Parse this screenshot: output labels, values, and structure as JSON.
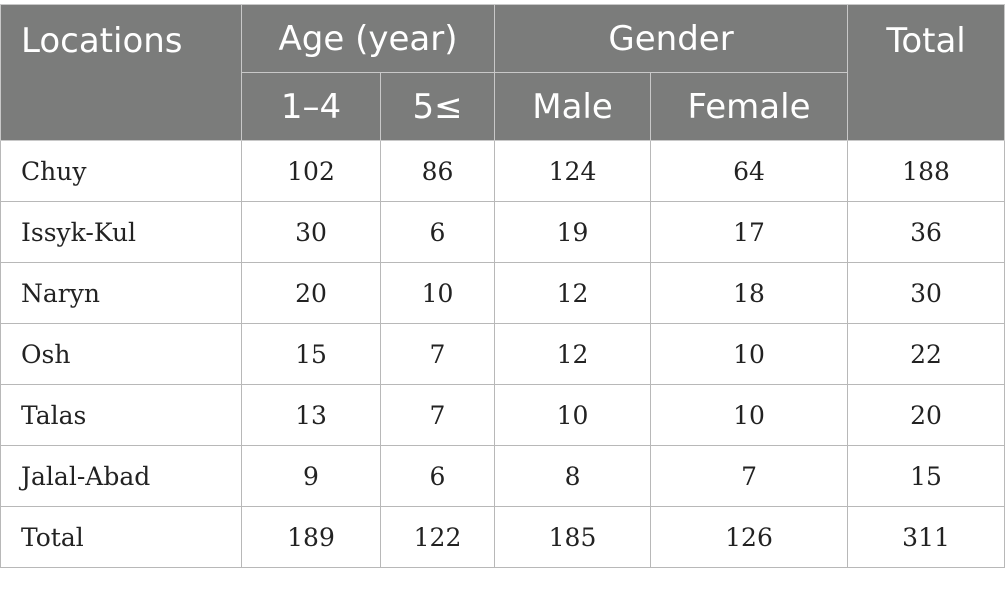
{
  "header": {
    "locations": "Locations",
    "age_group": "Age (year)",
    "gender_group": "Gender",
    "total": "Total",
    "age_1_4": "1–4",
    "age_5_plus": "5≤",
    "male": "Male",
    "female": "Female"
  },
  "rows": [
    {
      "location": "Chuy",
      "age_1_4": "102",
      "age_5_plus": "86",
      "male": "124",
      "female": "64",
      "total": "188"
    },
    {
      "location": "Issyk-Kul",
      "age_1_4": "30",
      "age_5_plus": "6",
      "male": "19",
      "female": "17",
      "total": "36"
    },
    {
      "location": "Naryn",
      "age_1_4": "20",
      "age_5_plus": "10",
      "male": "12",
      "female": "18",
      "total": "30"
    },
    {
      "location": "Osh",
      "age_1_4": "15",
      "age_5_plus": "7",
      "male": "12",
      "female": "10",
      "total": "22"
    },
    {
      "location": "Talas",
      "age_1_4": "13",
      "age_5_plus": "7",
      "male": "10",
      "female": "10",
      "total": "20"
    },
    {
      "location": "Jalal-Abad",
      "age_1_4": "9",
      "age_5_plus": "6",
      "male": "8",
      "female": "7",
      "total": "15"
    },
    {
      "location": "Total",
      "age_1_4": "189",
      "age_5_plus": "122",
      "male": "185",
      "female": "126",
      "total": "311"
    }
  ]
}
